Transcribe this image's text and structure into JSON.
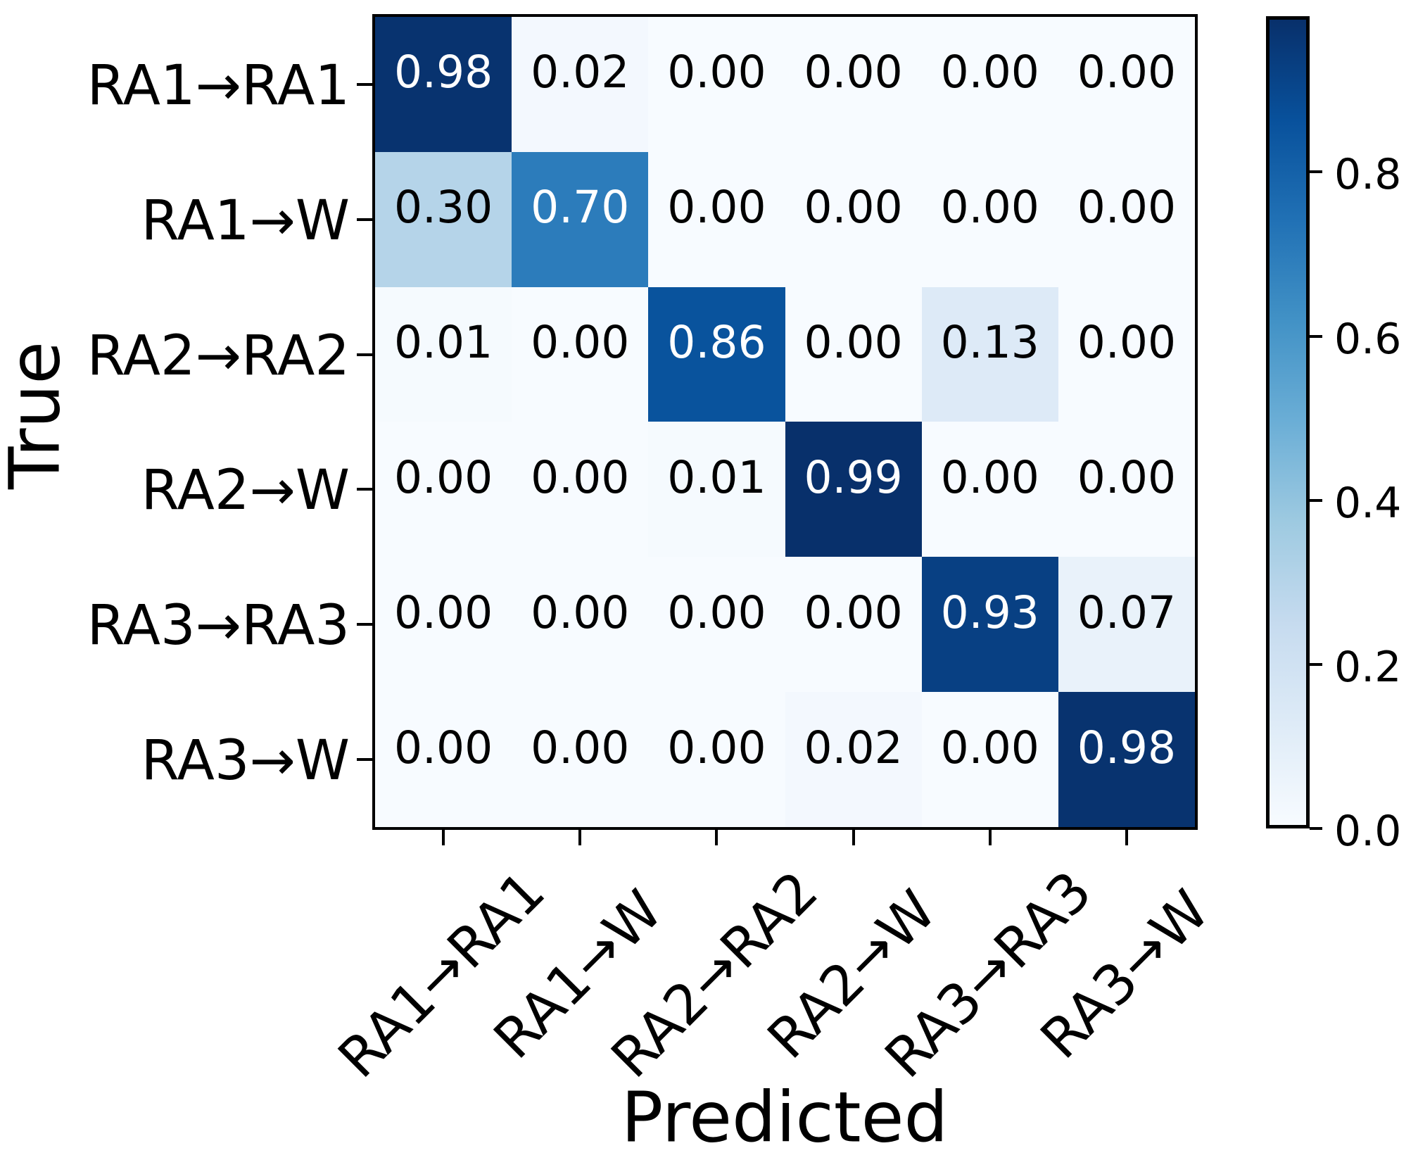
{
  "chart_data": {
    "type": "heatmap",
    "xlabel": "Predicted",
    "ylabel": "True",
    "categories": [
      "RA1→RA1",
      "RA1→W",
      "RA2→RA2",
      "RA2→W",
      "RA3→RA3",
      "RA3→W"
    ],
    "rows": [
      [
        0.98,
        0.02,
        0.0,
        0.0,
        0.0,
        0.0
      ],
      [
        0.3,
        0.7,
        0.0,
        0.0,
        0.0,
        0.0
      ],
      [
        0.01,
        0.0,
        0.86,
        0.0,
        0.13,
        0.0
      ],
      [
        0.0,
        0.0,
        0.01,
        0.99,
        0.0,
        0.0
      ],
      [
        0.0,
        0.0,
        0.0,
        0.0,
        0.93,
        0.07
      ],
      [
        0.0,
        0.0,
        0.0,
        0.02,
        0.0,
        0.98
      ]
    ],
    "value_format_decimals": 2,
    "vmin": 0.0,
    "vmax": 0.99,
    "colormap": "Blues",
    "colormap_colors": [
      "#f7fbff",
      "#deebf7",
      "#c6dbef",
      "#9ecae1",
      "#6baed6",
      "#4292c6",
      "#2171b5",
      "#08519c",
      "#08306b"
    ],
    "cell_text_color_dark": "#000000",
    "cell_text_color_light": "#ffffff",
    "colorbar_ticks": [
      0.8,
      0.6,
      0.4,
      0.2,
      0.0
    ],
    "grid": false,
    "legend_position": "colorbar-right"
  }
}
